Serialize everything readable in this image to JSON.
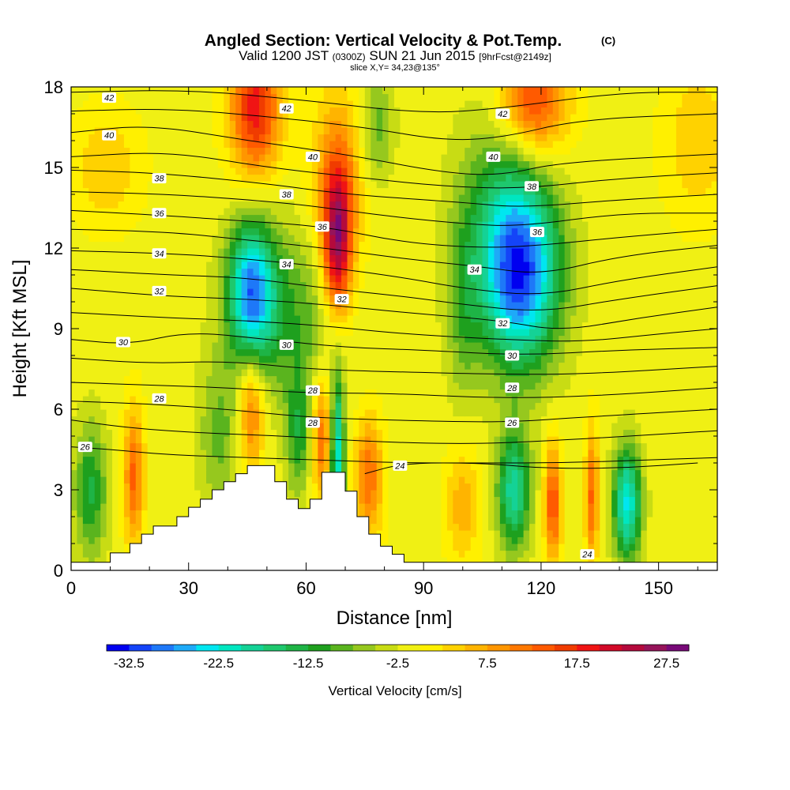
{
  "chart_data": {
    "type": "heatmap",
    "title": "Angled Section: Vertical Velocity & Pot.Temp.",
    "title_unit": "(C)",
    "subtitle": {
      "prefix": "Valid 1200 JST",
      "utc": "(0300Z)",
      "date": "SUN 21 Jun 2015",
      "forecast": "[9hrFcst@2149z]"
    },
    "slice_info": "slice X,Y= 34,23@135°",
    "xlabel": "Distance [nm]",
    "ylabel": "Height [Kft MSL]",
    "xlim": [
      0,
      165
    ],
    "ylim": [
      0,
      18
    ],
    "xticks": [
      "0",
      "30",
      "60",
      "90",
      "120",
      "150"
    ],
    "yticks": [
      "0",
      "3",
      "6",
      "9",
      "12",
      "15",
      "18"
    ],
    "colorbar": {
      "label": "Vertical Velocity [cm/s]",
      "min": -35,
      "step": 2.5,
      "ticks": [
        "-32.5",
        "-22.5",
        "-12.5",
        "-2.5",
        "7.5",
        "17.5",
        "27.5"
      ],
      "colors": [
        "#0000f0",
        "#1444f8",
        "#1e78f8",
        "#1eaaf8",
        "#00e6f0",
        "#00e6c0",
        "#14d296",
        "#1ec86e",
        "#1eb446",
        "#1ea01e",
        "#5ab41e",
        "#96c81e",
        "#c8dc14",
        "#f0f014",
        "#fff000",
        "#ffd200",
        "#ffb400",
        "#ff9600",
        "#ff7800",
        "#ff5a00",
        "#f03c00",
        "#f01414",
        "#d20a28",
        "#b40a3c",
        "#96145a",
        "#780a78"
      ]
    },
    "terrain": [
      [
        0,
        0.3
      ],
      [
        10,
        0.3
      ],
      [
        10,
        0.65
      ],
      [
        15,
        0.65
      ],
      [
        15,
        1.0
      ],
      [
        18,
        1.0
      ],
      [
        18,
        1.35
      ],
      [
        21,
        1.35
      ],
      [
        21,
        1.65
      ],
      [
        27,
        1.65
      ],
      [
        27,
        2.0
      ],
      [
        30,
        2.0
      ],
      [
        30,
        2.35
      ],
      [
        33,
        2.35
      ],
      [
        33,
        2.65
      ],
      [
        36,
        2.65
      ],
      [
        36,
        3.0
      ],
      [
        39,
        3.0
      ],
      [
        39,
        3.3
      ],
      [
        42,
        3.3
      ],
      [
        42,
        3.6
      ],
      [
        45,
        3.6
      ],
      [
        45,
        3.9
      ],
      [
        52,
        3.9
      ],
      [
        52,
        3.3
      ],
      [
        55,
        3.3
      ],
      [
        55,
        2.65
      ],
      [
        58,
        2.65
      ],
      [
        58,
        2.3
      ],
      [
        61,
        2.3
      ],
      [
        61,
        2.65
      ],
      [
        64,
        2.65
      ],
      [
        64,
        3.65
      ],
      [
        70,
        3.65
      ],
      [
        70,
        2.95
      ],
      [
        73,
        2.95
      ],
      [
        73,
        2.0
      ],
      [
        76,
        2.0
      ],
      [
        76,
        1.35
      ],
      [
        79,
        1.35
      ],
      [
        79,
        0.9
      ],
      [
        82,
        0.9
      ],
      [
        82,
        0.6
      ],
      [
        85,
        0.6
      ],
      [
        85,
        0.3
      ],
      [
        165,
        0.3
      ]
    ],
    "theta_contours": [
      {
        "value": 42,
        "pts": [
          [
            0,
            17.8
          ],
          [
            30,
            17.9
          ],
          [
            60,
            17.5
          ],
          [
            90,
            17.0
          ],
          [
            110,
            17.2
          ],
          [
            140,
            17.8
          ],
          [
            165,
            17.8
          ]
        ]
      },
      {
        "value": 42,
        "pts": [
          [
            0,
            17.1
          ],
          [
            25,
            17.2
          ],
          [
            50,
            16.9
          ],
          [
            75,
            16.5
          ],
          [
            95,
            16.0
          ],
          [
            110,
            16.1
          ],
          [
            130,
            16.8
          ],
          [
            165,
            17.0
          ]
        ]
      },
      {
        "value": 40,
        "pts": [
          [
            0,
            16.3
          ],
          [
            20,
            16.6
          ],
          [
            45,
            16.0
          ],
          [
            70,
            15.5
          ],
          [
            95,
            14.8
          ],
          [
            110,
            14.7
          ],
          [
            125,
            15.2
          ],
          [
            165,
            15.5
          ]
        ]
      },
      {
        "value": 40,
        "pts": [
          [
            0,
            15.4
          ],
          [
            25,
            15.6
          ],
          [
            50,
            15.0
          ],
          [
            75,
            14.6
          ],
          [
            95,
            14.3
          ],
          [
            115,
            14.2
          ],
          [
            140,
            14.6
          ],
          [
            165,
            14.8
          ]
        ]
      },
      {
        "value": 38,
        "pts": [
          [
            0,
            14.9
          ],
          [
            22,
            14.8
          ],
          [
            50,
            14.4
          ],
          [
            70,
            14.0
          ],
          [
            100,
            13.7
          ],
          [
            115,
            13.5
          ],
          [
            140,
            13.8
          ],
          [
            165,
            14.0
          ]
        ]
      },
      {
        "value": 38,
        "pts": [
          [
            0,
            14.1
          ],
          [
            25,
            14.0
          ],
          [
            45,
            13.8
          ],
          [
            60,
            13.6
          ],
          [
            80,
            13.2
          ],
          [
            100,
            12.9
          ],
          [
            115,
            12.8
          ],
          [
            140,
            13.3
          ],
          [
            165,
            13.3
          ]
        ]
      },
      {
        "value": 36,
        "pts": [
          [
            0,
            13.4
          ],
          [
            25,
            13.2
          ],
          [
            45,
            13.0
          ],
          [
            65,
            12.8
          ],
          [
            85,
            12.2
          ],
          [
            105,
            12.0
          ],
          [
            120,
            12.1
          ],
          [
            140,
            12.4
          ],
          [
            165,
            12.7
          ]
        ]
      },
      {
        "value": 36,
        "pts": [
          [
            0,
            12.7
          ],
          [
            25,
            12.6
          ],
          [
            45,
            12.3
          ],
          [
            65,
            12.0
          ],
          [
            85,
            11.6
          ],
          [
            105,
            11.3
          ],
          [
            120,
            11.0
          ],
          [
            140,
            11.7
          ],
          [
            165,
            12.1
          ]
        ]
      },
      {
        "value": 34,
        "pts": [
          [
            0,
            11.9
          ],
          [
            25,
            11.8
          ],
          [
            45,
            11.6
          ],
          [
            65,
            11.3
          ],
          [
            85,
            10.9
          ],
          [
            100,
            10.5
          ],
          [
            120,
            10.2
          ],
          [
            140,
            10.8
          ],
          [
            165,
            11.3
          ]
        ]
      },
      {
        "value": 34,
        "pts": [
          [
            0,
            11.2
          ],
          [
            25,
            11.0
          ],
          [
            45,
            10.9
          ],
          [
            65,
            10.5
          ],
          [
            85,
            10.2
          ],
          [
            100,
            9.9
          ],
          [
            120,
            9.6
          ],
          [
            140,
            10.1
          ],
          [
            165,
            10.6
          ]
        ]
      },
      {
        "value": 32,
        "pts": [
          [
            0,
            10.5
          ],
          [
            25,
            10.2
          ],
          [
            45,
            10.1
          ],
          [
            65,
            9.9
          ],
          [
            85,
            9.6
          ],
          [
            110,
            9.3
          ],
          [
            125,
            8.9
          ],
          [
            145,
            9.4
          ],
          [
            165,
            9.8
          ]
        ]
      },
      {
        "value": 32,
        "pts": [
          [
            0,
            9.6
          ],
          [
            25,
            9.4
          ],
          [
            45,
            9.3
          ],
          [
            65,
            9.1
          ],
          [
            85,
            8.8
          ],
          [
            110,
            8.6
          ],
          [
            130,
            8.5
          ],
          [
            150,
            8.8
          ],
          [
            165,
            9.0
          ]
        ]
      },
      {
        "value": 30,
        "pts": [
          [
            0,
            8.6
          ],
          [
            15,
            8.4
          ],
          [
            30,
            8.9
          ],
          [
            50,
            8.6
          ],
          [
            70,
            8.3
          ],
          [
            90,
            8.2
          ],
          [
            115,
            8.0
          ],
          [
            140,
            8.2
          ],
          [
            165,
            8.3
          ]
        ]
      },
      {
        "value": 30,
        "pts": [
          [
            0,
            7.9
          ],
          [
            20,
            7.7
          ],
          [
            40,
            7.8
          ],
          [
            60,
            7.5
          ],
          [
            80,
            7.4
          ],
          [
            110,
            7.3
          ],
          [
            130,
            7.3
          ],
          [
            165,
            7.6
          ]
        ]
      },
      {
        "value": 28,
        "pts": [
          [
            0,
            7.0
          ],
          [
            20,
            6.9
          ],
          [
            40,
            6.8
          ],
          [
            60,
            6.6
          ],
          [
            80,
            6.6
          ],
          [
            110,
            6.4
          ],
          [
            135,
            6.5
          ],
          [
            165,
            6.8
          ]
        ]
      },
      {
        "value": 28,
        "pts": [
          [
            0,
            6.3
          ],
          [
            20,
            6.2
          ],
          [
            40,
            6.0
          ],
          [
            60,
            5.7
          ],
          [
            80,
            5.6
          ],
          [
            110,
            5.5
          ],
          [
            130,
            5.7
          ],
          [
            165,
            6.0
          ]
        ]
      },
      {
        "value": 26,
        "pts": [
          [
            0,
            5.6
          ],
          [
            15,
            5.3
          ],
          [
            35,
            5.1
          ],
          [
            55,
            5.0
          ],
          [
            75,
            4.8
          ],
          [
            100,
            4.7
          ],
          [
            120,
            4.8
          ],
          [
            165,
            5.2
          ]
        ]
      },
      {
        "value": 26,
        "pts": [
          [
            0,
            4.6
          ],
          [
            10,
            4.5
          ],
          [
            25,
            4.3
          ],
          [
            45,
            4.2
          ],
          [
            65,
            4.1
          ],
          [
            85,
            4.0
          ],
          [
            105,
            4.0
          ],
          [
            125,
            4.0
          ],
          [
            145,
            4.1
          ],
          [
            165,
            4.2
          ]
        ]
      },
      {
        "value": 24,
        "pts": [
          [
            75,
            3.6
          ],
          [
            85,
            4.0
          ],
          [
            105,
            4.0
          ],
          [
            120,
            3.8
          ],
          [
            140,
            3.8
          ],
          [
            160,
            4.0
          ]
        ]
      }
    ],
    "theta_labels": [
      {
        "text": "42",
        "x": 9.7,
        "y": 17.6
      },
      {
        "text": "42",
        "x": 55.0,
        "y": 17.2
      },
      {
        "text": "42",
        "x": 110.2,
        "y": 17.0
      },
      {
        "text": "40",
        "x": 9.7,
        "y": 16.2
      },
      {
        "text": "40",
        "x": 61.7,
        "y": 15.4
      },
      {
        "text": "40",
        "x": 107.8,
        "y": 15.4
      },
      {
        "text": "38",
        "x": 22.5,
        "y": 14.6
      },
      {
        "text": "38",
        "x": 55.0,
        "y": 14.0
      },
      {
        "text": "38",
        "x": 117.6,
        "y": 14.3
      },
      {
        "text": "36",
        "x": 22.5,
        "y": 13.3
      },
      {
        "text": "36",
        "x": 64.1,
        "y": 12.8
      },
      {
        "text": "36",
        "x": 119.0,
        "y": 12.6
      },
      {
        "text": "34",
        "x": 22.5,
        "y": 11.8
      },
      {
        "text": "34",
        "x": 55.0,
        "y": 11.4
      },
      {
        "text": "34",
        "x": 103.0,
        "y": 11.2
      },
      {
        "text": "32",
        "x": 22.5,
        "y": 10.4
      },
      {
        "text": "32",
        "x": 69.1,
        "y": 10.1
      },
      {
        "text": "32",
        "x": 110.2,
        "y": 9.2
      },
      {
        "text": "30",
        "x": 13.3,
        "y": 8.5
      },
      {
        "text": "30",
        "x": 55.0,
        "y": 8.4
      },
      {
        "text": "30",
        "x": 112.6,
        "y": 8.0
      },
      {
        "text": "28",
        "x": 22.5,
        "y": 6.4
      },
      {
        "text": "28",
        "x": 61.7,
        "y": 6.7
      },
      {
        "text": "28",
        "x": 61.7,
        "y": 5.5
      },
      {
        "text": "28",
        "x": 112.6,
        "y": 6.8
      },
      {
        "text": "26",
        "x": 3.6,
        "y": 4.6
      },
      {
        "text": "26",
        "x": 112.6,
        "y": 5.5
      },
      {
        "text": "24",
        "x": 84.0,
        "y": 3.9
      },
      {
        "text": "24",
        "x": 131.8,
        "y": 0.6
      }
    ]
  }
}
